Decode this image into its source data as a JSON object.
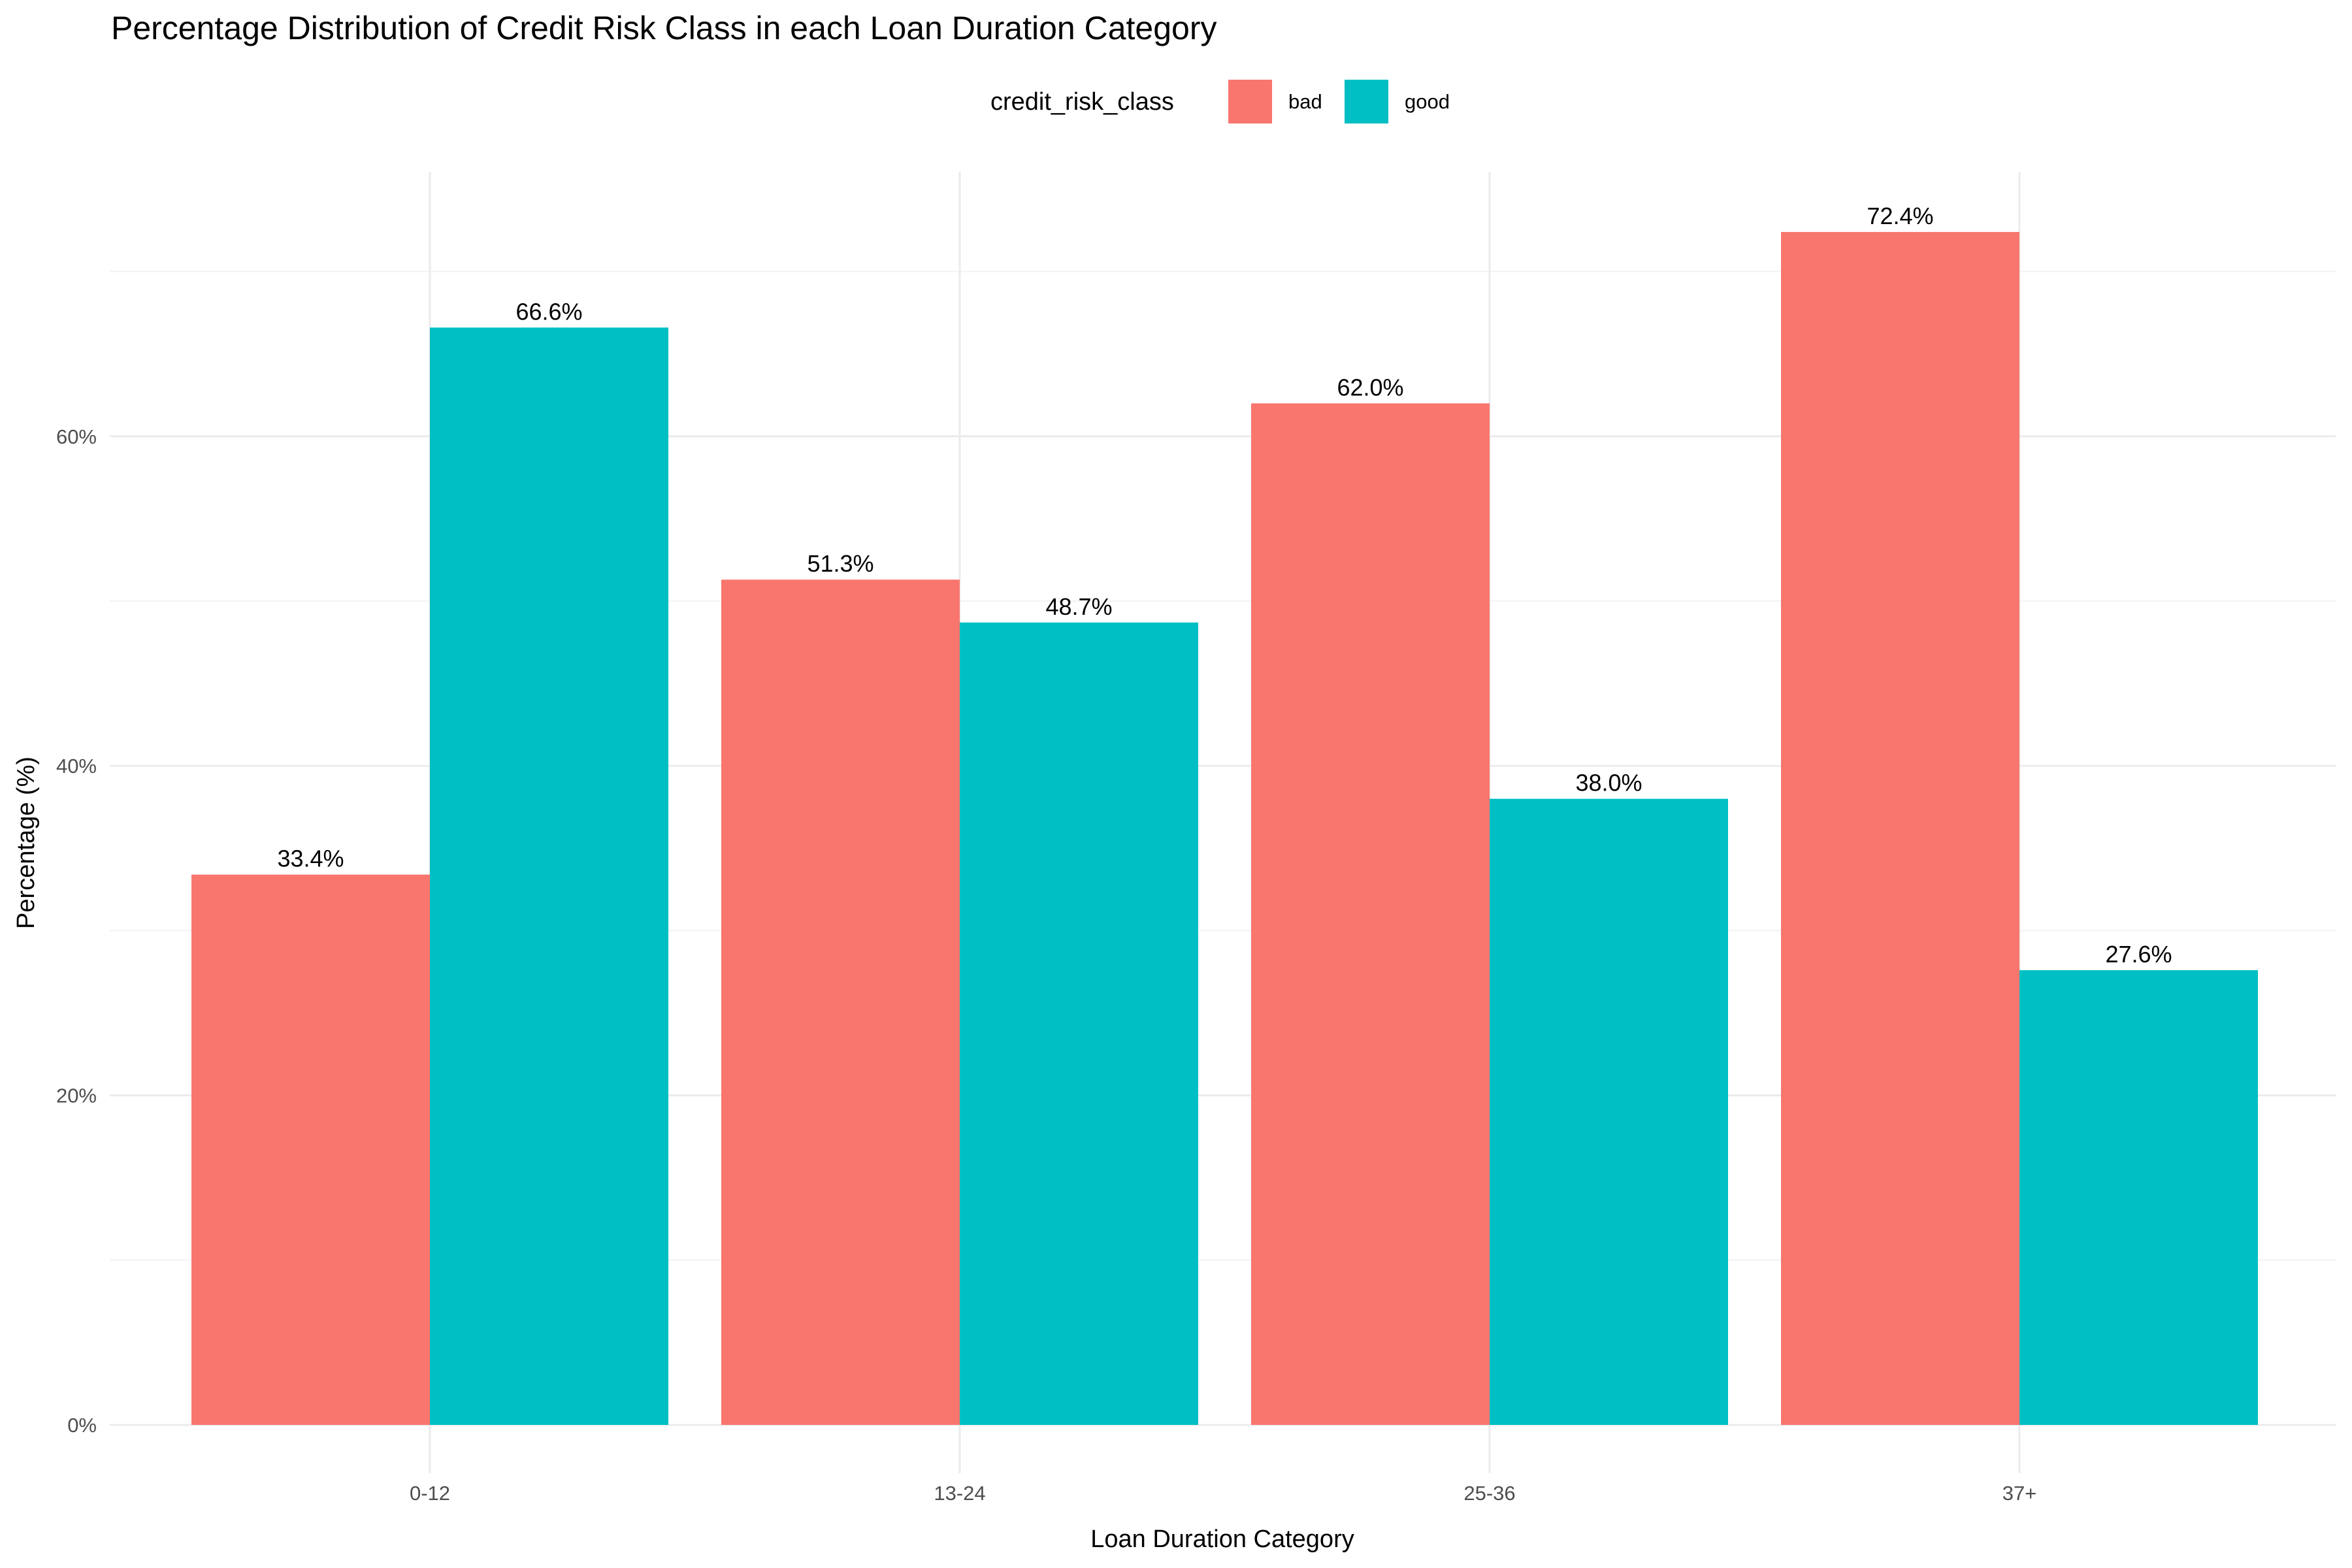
{
  "chart_data": {
    "type": "bar",
    "title": "Percentage Distribution of Credit Risk Class in each Loan Duration Category",
    "xlabel": "Loan Duration Category",
    "ylabel": "Percentage (%)",
    "legend_title": "credit_risk_class",
    "legend_position": "top",
    "grid": true,
    "categories": [
      "0-12",
      "13-24",
      "25-36",
      "37+"
    ],
    "series": [
      {
        "name": "bad",
        "color": "#F8766D",
        "values": [
          33.4,
          51.3,
          62.0,
          72.4
        ],
        "labels": [
          "33.4%",
          "51.3%",
          "62.0%",
          "72.4%"
        ]
      },
      {
        "name": "good",
        "color": "#00BFC4",
        "values": [
          66.6,
          48.7,
          38.0,
          27.6
        ],
        "labels": [
          "66.6%",
          "48.7%",
          "38.0%",
          "27.6%"
        ]
      }
    ],
    "y_ticks": [
      0,
      20,
      40,
      60
    ],
    "y_tick_labels": [
      "0%",
      "20%",
      "40%",
      "60%"
    ],
    "ylim": [
      -3.6,
      76.0
    ]
  }
}
